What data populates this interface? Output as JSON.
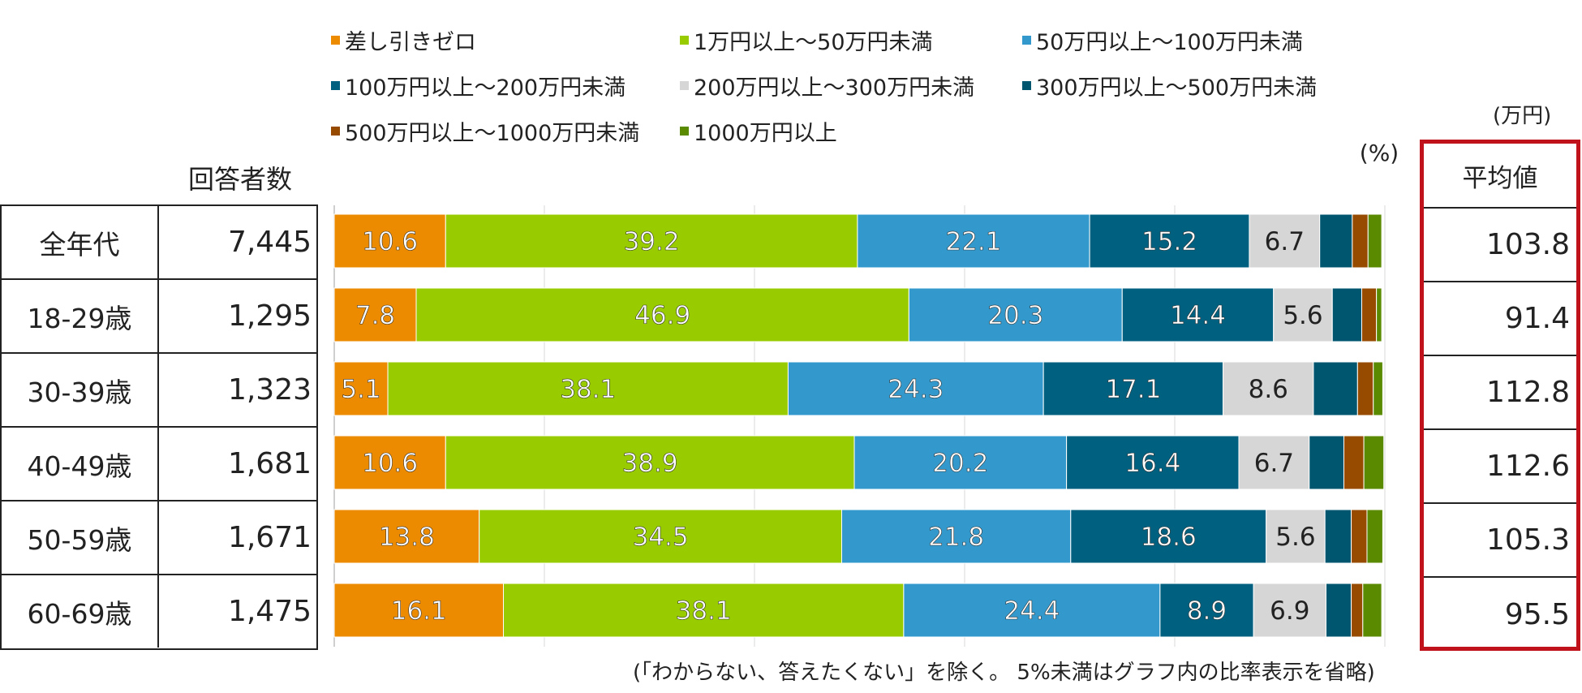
{
  "chart_data": {
    "type": "bar",
    "orientation": "horizontal",
    "stacked": true,
    "categories": [
      "全年代",
      "18-29歳",
      "30-39歳",
      "40-49歳",
      "50-59歳",
      "60-69歳"
    ],
    "respondents_header": "回答者数",
    "respondents": [
      "7,445",
      "1,295",
      "1,323",
      "1,681",
      "1,671",
      "1,475"
    ],
    "percent_unit": "(%)",
    "series": [
      {
        "name": "差し引きゼロ",
        "color": "#ED8B00",
        "values": [
          10.6,
          7.8,
          5.1,
          10.6,
          13.8,
          16.1
        ]
      },
      {
        "name": "1万円以上～50万円未満",
        "color": "#99CC00",
        "values": [
          39.2,
          46.9,
          38.1,
          38.9,
          34.5,
          38.1
        ]
      },
      {
        "name": "50万円以上～100万円未満",
        "color": "#3399CC",
        "values": [
          22.1,
          20.3,
          24.3,
          20.2,
          21.8,
          24.4
        ]
      },
      {
        "name": "100万円以上～200万円未満",
        "color": "#006080",
        "values": [
          15.2,
          14.4,
          17.1,
          16.4,
          18.6,
          8.9
        ]
      },
      {
        "name": "200万円以上～300万円未満",
        "color": "#D6D6D6",
        "values": [
          6.7,
          5.6,
          8.6,
          6.7,
          5.6,
          6.9
        ]
      },
      {
        "name": "300万円以上～500万円未満",
        "color": "#00566F",
        "values": [
          3.1,
          2.8,
          4.2,
          3.3,
          2.5,
          2.4
        ]
      },
      {
        "name": "500万円以上～1000万円未満",
        "color": "#964B00",
        "values": [
          1.5,
          1.4,
          1.5,
          1.9,
          1.5,
          1.1
        ]
      },
      {
        "name": "1000万円以上",
        "color": "#5A8A00",
        "values": [
          1.3,
          0.5,
          0.9,
          1.9,
          1.5,
          1.8
        ]
      }
    ],
    "label_threshold": 5,
    "xlim": [
      0,
      100
    ],
    "gridlines": [
      20,
      40,
      60,
      80,
      100
    ],
    "average": {
      "unit": "(万円)",
      "header": "平均値",
      "values": [
        "103.8",
        "91.4",
        "112.8",
        "112.6",
        "105.3",
        "95.5"
      ]
    },
    "footnote": "(「わからない、答えたくない」を除く。 5%未満はグラフ内の比率表示を省略)"
  }
}
